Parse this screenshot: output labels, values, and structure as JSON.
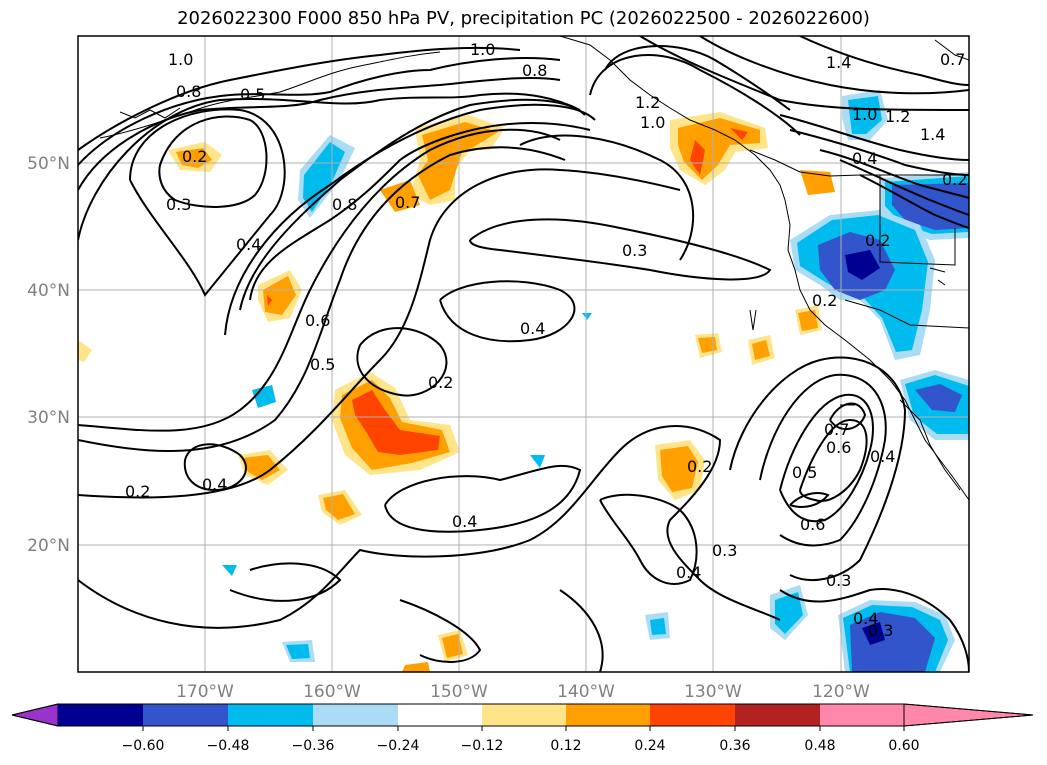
{
  "title": "2026022300 F000 850 hPa PV, precipitation PC (2026022500 - 2026022600)",
  "map": {
    "lon_labels": [
      "170°W",
      "160°W",
      "150°W",
      "140°W",
      "130°W",
      "120°W"
    ],
    "lat_labels": [
      "50°N",
      "40°N",
      "30°N",
      "20°N"
    ],
    "contour_labels": [
      "1.0",
      "0.8",
      "0.5",
      "0.2",
      "0.3",
      "0.4",
      "0.6",
      "0.5",
      "0.8",
      "0.7",
      "1.0",
      "0.8",
      "1.2",
      "1.0",
      "1.4",
      "1.0",
      "1.2",
      "1.4",
      "0.4",
      "0.2",
      "0.3",
      "0.4",
      "0.2",
      "0.2",
      "0.4",
      "0.2",
      "0.4",
      "0.2",
      "0.4",
      "0.3",
      "0.7",
      "0.6",
      "0.4",
      "0.5",
      "0.6",
      "0.3",
      "0.4",
      "0.3",
      "0.7",
      "0.2"
    ]
  },
  "colorbar": {
    "ticks": [
      "−0.60",
      "−0.48",
      "−0.36",
      "−0.24",
      "−0.12",
      "0.12",
      "0.24",
      "0.36",
      "0.48",
      "0.60"
    ],
    "colors": [
      "#9933cc",
      "#000090",
      "#3355cc",
      "#00bbee",
      "#aaddf5",
      "#ffffff",
      "#ffe48a",
      "#ffa000",
      "#ff4400",
      "#b22222",
      "#ff88aa"
    ]
  }
}
